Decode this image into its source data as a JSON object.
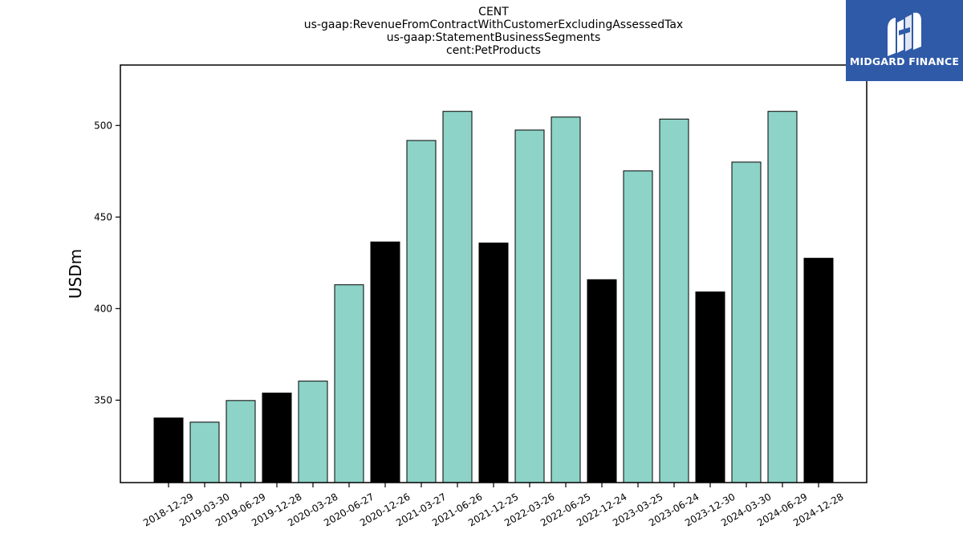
{
  "chart_data": {
    "type": "bar",
    "title_lines": [
      "CENT",
      "us-gaap:RevenueFromContractWithCustomerExcludingAssessedTax",
      "us-gaap:StatementBusinessSegments",
      "cent:PetProducts"
    ],
    "ylabel": "USDm",
    "xlabel": "",
    "ylim": [
      305,
      533
    ],
    "yticks": [
      350,
      400,
      450,
      500
    ],
    "categories": [
      "2018-12-29",
      "2019-03-30",
      "2019-06-29",
      "2019-12-28",
      "2020-03-28",
      "2020-06-27",
      "2020-12-26",
      "2021-03-27",
      "2021-06-26",
      "2021-12-25",
      "2022-03-26",
      "2022-06-25",
      "2022-12-24",
      "2023-03-25",
      "2023-06-24",
      "2023-12-30",
      "2024-03-30",
      "2024-06-29",
      "2024-12-28"
    ],
    "values": [
      340.3,
      338.0,
      349.8,
      353.9,
      360.4,
      413.0,
      436.4,
      491.8,
      507.7,
      435.8,
      497.5,
      504.6,
      415.8,
      475.2,
      503.5,
      409.1,
      480.0,
      507.7,
      427.5
    ],
    "bar_colors": [
      "#000000",
      "#8dd3c7",
      "#8dd3c7",
      "#000000",
      "#8dd3c7",
      "#8dd3c7",
      "#000000",
      "#8dd3c7",
      "#8dd3c7",
      "#000000",
      "#8dd3c7",
      "#8dd3c7",
      "#000000",
      "#8dd3c7",
      "#8dd3c7",
      "#000000",
      "#8dd3c7",
      "#8dd3c7",
      "#000000"
    ],
    "grid": false,
    "legend": "none"
  },
  "logo": {
    "text": "MIDGARD FINANCE",
    "background": "#2f5aa8"
  }
}
